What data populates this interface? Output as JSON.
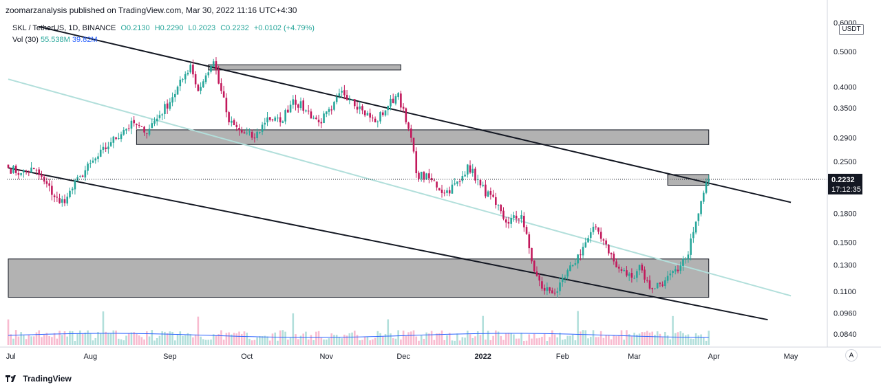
{
  "header": {
    "published": "zoomarzanalysis published on TradingView.com, Mar 30, 2022 11:16 UTC+4:30"
  },
  "legend": {
    "symbol": "SKL / TetherUS, 1D, BINANCE",
    "open": "O0.2130",
    "high": "H0.2290",
    "low": "L0.2023",
    "close": "C0.2232",
    "change": "+0.0102 (+4.79%)",
    "vol_label": "Vol (30)",
    "vol_value": "55.538M",
    "vol_ma": "39.82M"
  },
  "currency": "USDT",
  "price_label": {
    "value": "0.2232",
    "countdown": "17:12:35"
  },
  "auto_button": "A",
  "footer": {
    "brand": "TradingView"
  },
  "colors": {
    "up": "#26a69a",
    "down": "#c2185b",
    "zone": "#b2b2b2",
    "channel": "#b2dfdb"
  },
  "chart_data": {
    "type": "candlestick",
    "scale": "log",
    "y_ticks": [
      "0.6000",
      "0.5000",
      "0.4000",
      "0.3500",
      "0.2900",
      "0.2500",
      "0.1800",
      "0.1500",
      "0.1300",
      "0.1100",
      "0.0960",
      "0.0840"
    ],
    "x_ticks": [
      "Jul",
      "Aug",
      "Sep",
      "Oct",
      "Nov",
      "Dec",
      "2022",
      "Feb",
      "Mar",
      "Apr",
      "May"
    ],
    "ylim": [
      0.078,
      0.62
    ],
    "start_date": "2021-06-30",
    "anchors": [
      [
        "2021-06-30",
        0.24
      ],
      [
        "2021-07-05",
        0.232
      ],
      [
        "2021-07-10",
        0.238
      ],
      [
        "2021-07-14",
        0.22
      ],
      [
        "2021-07-20",
        0.192
      ],
      [
        "2021-07-23",
        0.2
      ],
      [
        "2021-07-28",
        0.228
      ],
      [
        "2021-08-04",
        0.258
      ],
      [
        "2021-08-09",
        0.282
      ],
      [
        "2021-08-14",
        0.305
      ],
      [
        "2021-08-18",
        0.318
      ],
      [
        "2021-08-22",
        0.3
      ],
      [
        "2021-08-28",
        0.335
      ],
      [
        "2021-09-02",
        0.375
      ],
      [
        "2021-09-06",
        0.42
      ],
      [
        "2021-09-09",
        0.46
      ],
      [
        "2021-09-12",
        0.39
      ],
      [
        "2021-09-15",
        0.43
      ],
      [
        "2021-09-18",
        0.47
      ],
      [
        "2021-09-21",
        0.39
      ],
      [
        "2021-09-24",
        0.32
      ],
      [
        "2021-09-29",
        0.3
      ],
      [
        "2021-10-04",
        0.29
      ],
      [
        "2021-10-09",
        0.33
      ],
      [
        "2021-10-14",
        0.32
      ],
      [
        "2021-10-19",
        0.37
      ],
      [
        "2021-10-24",
        0.345
      ],
      [
        "2021-10-29",
        0.32
      ],
      [
        "2021-11-03",
        0.345
      ],
      [
        "2021-11-07",
        0.39
      ],
      [
        "2021-11-11",
        0.37
      ],
      [
        "2021-11-15",
        0.345
      ],
      [
        "2021-11-20",
        0.32
      ],
      [
        "2021-11-25",
        0.355
      ],
      [
        "2021-11-29",
        0.385
      ],
      [
        "2021-12-02",
        0.32
      ],
      [
        "2021-12-04",
        0.29
      ],
      [
        "2021-12-06",
        0.232
      ],
      [
        "2021-12-12",
        0.222
      ],
      [
        "2021-12-17",
        0.205
      ],
      [
        "2021-12-23",
        0.22
      ],
      [
        "2021-12-26",
        0.245
      ],
      [
        "2021-12-31",
        0.215
      ],
      [
        "2022-01-06",
        0.19
      ],
      [
        "2022-01-10",
        0.17
      ],
      [
        "2022-01-16",
        0.178
      ],
      [
        "2022-01-21",
        0.125
      ],
      [
        "2022-01-24",
        0.112
      ],
      [
        "2022-01-30",
        0.11
      ],
      [
        "2022-02-05",
        0.13
      ],
      [
        "2022-02-10",
        0.15
      ],
      [
        "2022-02-14",
        0.165
      ],
      [
        "2022-02-18",
        0.148
      ],
      [
        "2022-02-22",
        0.128
      ],
      [
        "2022-02-28",
        0.12
      ],
      [
        "2022-03-03",
        0.13
      ],
      [
        "2022-03-07",
        0.112
      ],
      [
        "2022-03-13",
        0.118
      ],
      [
        "2022-03-18",
        0.125
      ],
      [
        "2022-03-21",
        0.135
      ],
      [
        "2022-03-24",
        0.16
      ],
      [
        "2022-03-26",
        0.18
      ],
      [
        "2022-03-28",
        0.205
      ],
      [
        "2022-03-30",
        0.2232
      ]
    ],
    "volume_ma_label": "39.82M",
    "zones": [
      {
        "from": "2021-08-19",
        "to": "2022-03-30",
        "low": 0.278,
        "high": 0.305
      },
      {
        "from": "2021-06-30",
        "to": "2022-03-30",
        "low": 0.106,
        "high": 0.135
      },
      {
        "from": "2021-09-16",
        "to": "2021-11-30",
        "low": 0.445,
        "high": 0.46
      },
      {
        "from": "2022-03-14",
        "to": "2022-03-30",
        "low": 0.215,
        "high": 0.23
      }
    ],
    "trendlines": [
      {
        "x1": "2021-06-30",
        "y1": 0.24,
        "x2": "2022-04-22",
        "y2": 0.092,
        "color": "#131722"
      },
      {
        "x1": "2021-07-12",
        "y1": 0.585,
        "x2": "2022-05-01",
        "y2": 0.193,
        "color": "#131722"
      },
      {
        "x1": "2021-06-30",
        "y1": 0.42,
        "x2": "2022-05-01",
        "y2": 0.107,
        "color": "#b2dfdb"
      }
    ]
  }
}
